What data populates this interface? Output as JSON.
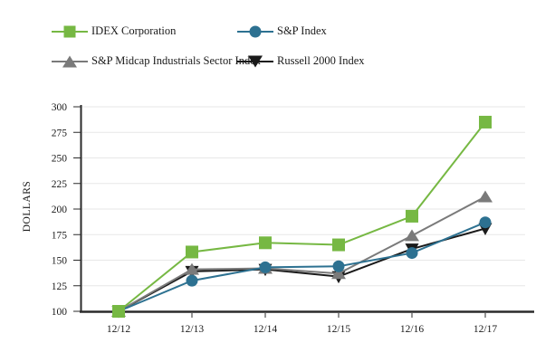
{
  "legend": {
    "items": [
      {
        "label": "IDEX Corporation",
        "marker": "square",
        "color": "#76b843"
      },
      {
        "label": "S&P Index",
        "marker": "circle",
        "color": "#2d7191"
      },
      {
        "label": "S&P Midcap Industrials Sector Index",
        "marker": "triangle-up",
        "color": "#7a7a7a"
      },
      {
        "label": "Russell 2000 Index",
        "marker": "triangle-down",
        "color": "#1a1a1a"
      }
    ]
  },
  "chart_data": {
    "type": "line",
    "title": "",
    "xlabel": "",
    "ylabel": "DOLLARS",
    "categories": [
      "12/12",
      "12/13",
      "12/14",
      "12/15",
      "12/16",
      "12/17"
    ],
    "yticks": [
      100,
      125,
      150,
      175,
      200,
      225,
      250,
      275,
      300
    ],
    "ylim": [
      100,
      300
    ],
    "grid": true,
    "legend_position": "top",
    "series": [
      {
        "name": "IDEX Corporation",
        "marker": "square",
        "color": "#76b843",
        "values": [
          100,
          158,
          167,
          165,
          193,
          285
        ]
      },
      {
        "name": "S&P Index",
        "marker": "circle",
        "color": "#2d7191",
        "values": [
          100,
          130,
          143,
          144,
          157,
          187
        ]
      },
      {
        "name": "S&P Midcap Industrials Sector Index",
        "marker": "triangle-up",
        "color": "#7a7a7a",
        "values": [
          100,
          141,
          142,
          137,
          174,
          212
        ]
      },
      {
        "name": "Russell 2000 Index",
        "marker": "triangle-down",
        "color": "#1a1a1a",
        "values": [
          100,
          139,
          141,
          134,
          161,
          181
        ]
      }
    ]
  },
  "colors": {
    "gridline": "#e7e7e7",
    "axis": "#2b2b2b",
    "text": "#1a1a1a"
  }
}
